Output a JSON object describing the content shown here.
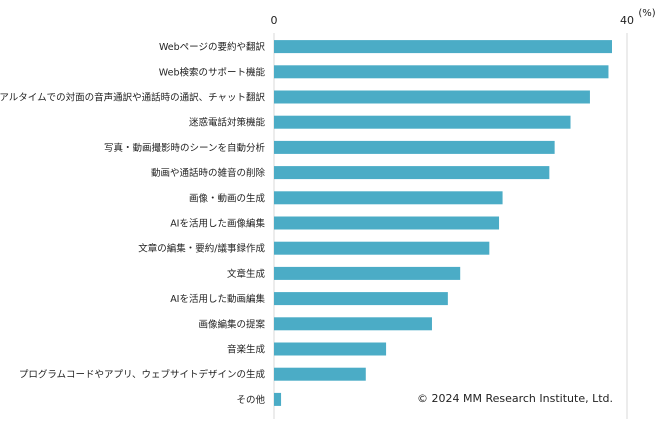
{
  "chart_data": {
    "type": "bar",
    "orientation": "horizontal",
    "unit_label": "(%)",
    "xlim": [
      0,
      40
    ],
    "x_ticks": [
      "0",
      "40"
    ],
    "grid": false,
    "categories": [
      "Webページの要約や翻訳",
      "Web検索のサポート機能",
      "リアルタイムでの対面の音声通訳や通話時の通訳、チャット翻訳",
      "迷惑電話対策機能",
      "写真・動画撮影時のシーンを自動分析",
      "動画や通話時の雑音の削除",
      "画像・動画の生成",
      "AIを活用した画像編集",
      "文章の編集・要約/議事録作成",
      "文章生成",
      "AIを活用した動画編集",
      "画像編集の提案",
      "音楽生成",
      "プログラムコードやアプリ、ウェブサイトデザインの生成",
      "その他"
    ],
    "values": [
      38.3,
      37.9,
      35.8,
      33.6,
      31.8,
      31.2,
      25.9,
      25.5,
      24.4,
      21.1,
      19.7,
      17.9,
      12.7,
      10.4,
      0.8
    ],
    "bar_color": "#4bacc6",
    "axis_color": "#d9d9d9"
  },
  "copyright": "© 2024 MM Research Institute, Ltd."
}
